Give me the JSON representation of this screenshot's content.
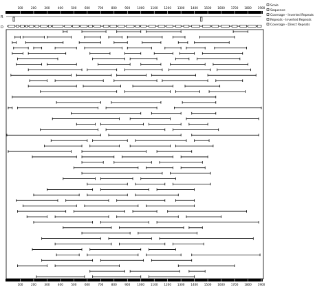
{
  "scale": {
    "ticks": [
      "100",
      "200",
      "300",
      "400",
      "500",
      "600",
      "700",
      "800",
      "900",
      "1000",
      "1100",
      "1200",
      "1300",
      "1400",
      "1500",
      "1600",
      "1700",
      "1800",
      "1900"
    ],
    "max": 1900
  },
  "legend": [
    {
      "label": "Scale"
    },
    {
      "label": "Sequence"
    },
    {
      "label": "Coverage - Inverted Repeats"
    },
    {
      "label": "Repeats - Inverted Repeats"
    },
    {
      "label": "Coverage - Direct Repeats"
    }
  ],
  "track_labels": {
    "inverted": "R",
    "direct": "D"
  },
  "inverted_marks": [
    52,
    1452
  ],
  "direct_coverage_blocks": [
    [
      10,
      60
    ],
    [
      70,
      90
    ],
    [
      100,
      130
    ],
    [
      140,
      155
    ],
    [
      165,
      200
    ],
    [
      210,
      240
    ],
    [
      250,
      300
    ],
    [
      310,
      330
    ],
    [
      340,
      420
    ],
    [
      430,
      480
    ],
    [
      490,
      540
    ],
    [
      550,
      600
    ],
    [
      610,
      640
    ],
    [
      650,
      700
    ],
    [
      720,
      760
    ],
    [
      770,
      820
    ],
    [
      830,
      880
    ],
    [
      890,
      950
    ],
    [
      960,
      990
    ],
    [
      1000,
      1040
    ],
    [
      1060,
      1110
    ],
    [
      1130,
      1180
    ],
    [
      1190,
      1240
    ],
    [
      1260,
      1300
    ],
    [
      1320,
      1360
    ],
    [
      1380,
      1440
    ],
    [
      1460,
      1520
    ],
    [
      1530,
      1580
    ],
    [
      1600,
      1660
    ],
    [
      1680,
      1720
    ],
    [
      1740,
      1790
    ],
    [
      1800,
      1860
    ],
    [
      1870,
      1900
    ]
  ],
  "repeats": [
    [
      420,
      450
    ],
    [
      560,
      740
    ],
    [
      820,
      1000
    ],
    [
      1040,
      1300
    ],
    [
      1690,
      1800
    ],
    [
      60,
      100
    ],
    [
      120,
      280
    ],
    [
      300,
      480
    ],
    [
      580,
      700
    ],
    [
      760,
      860
    ],
    [
      900,
      1160
    ],
    [
      1240,
      1330
    ],
    [
      1440,
      1700
    ],
    [
      40,
      70
    ],
    [
      140,
      420
    ],
    [
      540,
      700
    ],
    [
      800,
      900
    ],
    [
      1010,
      1150
    ],
    [
      1280,
      1350
    ],
    [
      1400,
      1660
    ],
    [
      50,
      160
    ],
    [
      200,
      260
    ],
    [
      360,
      520
    ],
    [
      580,
      860
    ],
    [
      900,
      1080
    ],
    [
      1180,
      1300
    ],
    [
      1340,
      1480
    ],
    [
      1550,
      1790
    ],
    [
      40,
      120
    ],
    [
      160,
      440
    ],
    [
      620,
      770
    ],
    [
      880,
      1000
    ],
    [
      1100,
      1240
    ],
    [
      1290,
      1400
    ],
    [
      1460,
      1760
    ],
    [
      80,
      380
    ],
    [
      640,
      880
    ],
    [
      920,
      1120
    ],
    [
      1260,
      1360
    ],
    [
      1420,
      1740
    ],
    [
      70,
      260
    ],
    [
      300,
      520
    ],
    [
      680,
      920
    ],
    [
      1000,
      1150
    ],
    [
      1220,
      1480
    ],
    [
      1540,
      1800
    ],
    [
      160,
      560
    ],
    [
      600,
      820
    ],
    [
      880,
      1160
    ],
    [
      1210,
      1520
    ],
    [
      1570,
      1820
    ],
    [
      30,
      480
    ],
    [
      520,
      780
    ],
    [
      820,
      1040
    ],
    [
      1080,
      1410
    ],
    [
      1500,
      1860
    ],
    [
      170,
      300
    ],
    [
      360,
      720
    ],
    [
      800,
      1120
    ],
    [
      1160,
      1500
    ],
    [
      1560,
      1760
    ],
    [
      160,
      520
    ],
    [
      570,
      850
    ],
    [
      940,
      1240
    ],
    [
      1330,
      1590
    ],
    [
      250,
      820
    ],
    [
      880,
      1220
    ],
    [
      1260,
      1440
    ],
    [
      1510,
      1780
    ],
    [
      40,
      1560
    ],
    [
      370,
      700
    ],
    [
      780,
      1150
    ],
    [
      1310,
      1560
    ],
    [
      10,
      40
    ],
    [
      80,
      680
    ],
    [
      740,
      1120
    ],
    [
      1250,
      1900
    ],
    [
      480,
      1000
    ],
    [
      1080,
      1300
    ],
    [
      1380,
      1560
    ],
    [
      340,
      840
    ],
    [
      920,
      1220
    ],
    [
      1340,
      1880
    ],
    [
      520,
      660
    ],
    [
      700,
      1020
    ],
    [
      1060,
      1300
    ],
    [
      1360,
      1500
    ],
    [
      250,
      680
    ],
    [
      740,
      1180
    ],
    [
      1240,
      1580
    ],
    [
      0,
      700
    ],
    [
      760,
      1300
    ],
    [
      1380,
      1880
    ],
    [
      330,
      600
    ],
    [
      640,
      900
    ],
    [
      960,
      1340
    ],
    [
      1400,
      1510
    ],
    [
      280,
      560
    ],
    [
      620,
      840
    ],
    [
      920,
      1220
    ],
    [
      1260,
      1540
    ],
    [
      10,
      480
    ],
    [
      560,
      1040
    ],
    [
      1120,
      1380
    ],
    [
      190,
      520
    ],
    [
      560,
      800
    ],
    [
      860,
      1240
    ],
    [
      1300,
      1500
    ],
    [
      560,
      720
    ],
    [
      800,
      1080
    ],
    [
      1140,
      1460
    ],
    [
      500,
      980
    ],
    [
      1040,
      1240
    ],
    [
      1300,
      1480
    ],
    [
      560,
      1160
    ],
    [
      1220,
      1520
    ],
    [
      420,
      660
    ],
    [
      700,
      940
    ],
    [
      1000,
      1260
    ],
    [
      600,
      900
    ],
    [
      960,
      1180
    ],
    [
      1240,
      1520
    ],
    [
      300,
      640
    ],
    [
      700,
      1060
    ],
    [
      1120,
      1400
    ],
    [
      200,
      540
    ],
    [
      600,
      900
    ],
    [
      960,
      1280
    ],
    [
      70,
      380
    ],
    [
      440,
      760
    ],
    [
      820,
      1180
    ],
    [
      1260,
      1400
    ],
    [
      120,
      520
    ],
    [
      580,
      980
    ],
    [
      1040,
      1400
    ],
    [
      80,
      440
    ],
    [
      500,
      880
    ],
    [
      940,
      1120
    ],
    [
      1200,
      1790
    ],
    [
      150,
      300
    ],
    [
      360,
      760
    ],
    [
      820,
      1280
    ],
    [
      1340,
      1600
    ],
    [
      200,
      640
    ],
    [
      700,
      1060
    ],
    [
      1120,
      1880
    ],
    [
      420,
      780
    ],
    [
      840,
      1320
    ],
    [
      1360,
      1460
    ],
    [
      560,
      920
    ],
    [
      980,
      1420
    ],
    [
      260,
      700
    ],
    [
      760,
      1080
    ],
    [
      1140,
      1840
    ],
    [
      360,
      780
    ],
    [
      840,
      1180
    ],
    [
      1240,
      1470
    ],
    [
      190,
      560
    ],
    [
      620,
      1000
    ],
    [
      1060,
      1260
    ],
    [
      370,
      540
    ],
    [
      600,
      980
    ],
    [
      1040,
      1300
    ],
    [
      1380,
      1890
    ],
    [
      260,
      640
    ],
    [
      700,
      1020
    ],
    [
      1080,
      1380
    ],
    [
      80,
      300
    ],
    [
      360,
      840
    ],
    [
      1280,
      1700
    ],
    [
      620,
      880
    ],
    [
      920,
      1290
    ],
    [
      1360,
      1480
    ],
    [
      220,
      580
    ],
    [
      640,
      1000
    ],
    [
      1060,
      1400
    ]
  ]
}
